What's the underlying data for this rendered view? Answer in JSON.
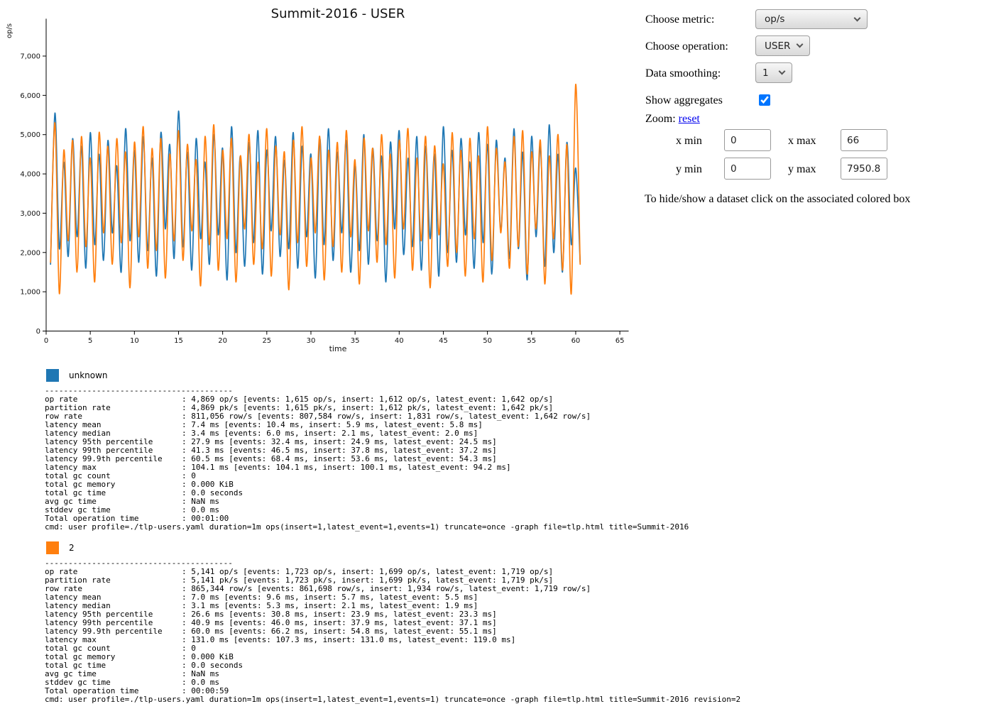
{
  "chart": {
    "title": "Summit-2016 - USER",
    "y_axis_label": "op/s",
    "x_axis_label": "time"
  },
  "chart_data": {
    "type": "line",
    "title": "Summit-2016 - USER",
    "xlabel": "time",
    "ylabel": "op/s",
    "xlim": [
      0,
      66
    ],
    "ylim": [
      0,
      7950.8
    ],
    "grid": false,
    "x_ticks": [
      0,
      5,
      10,
      15,
      20,
      25,
      30,
      35,
      40,
      45,
      50,
      55,
      60,
      65
    ],
    "y_ticks": [
      0,
      1000,
      2000,
      3000,
      4000,
      5000,
      6000,
      7000
    ],
    "y_tick_labels": [
      "0",
      "1,000",
      "2,000",
      "3,000",
      "4,000",
      "5,000",
      "6,000",
      "7,000"
    ],
    "x_start": 0.5,
    "x_step": 0.5,
    "series": [
      {
        "name": "unknown",
        "color": "#1f77b4",
        "values": [
          1700,
          5550,
          2100,
          4300,
          1900,
          4900,
          2400,
          4700,
          1600,
          5050,
          2200,
          4500,
          1800,
          4850,
          2500,
          4200,
          1500,
          5150,
          2300,
          4600,
          1750,
          4950,
          2050,
          4400,
          1400,
          5050,
          2600,
          4750,
          1850,
          5600,
          2150,
          4550,
          1550,
          4900,
          2350,
          4300,
          1700,
          5000,
          2450,
          4650,
          1300,
          5200,
          2000,
          4450,
          1650,
          4800,
          2250,
          5100,
          1450,
          4600,
          2550,
          4950,
          1900,
          4350,
          2100,
          5050,
          1600,
          4700,
          2400,
          4500,
          1350,
          4900,
          2200,
          5150,
          1800,
          4550,
          2500,
          4850,
          1500,
          4250,
          2050,
          5000,
          1700,
          4650,
          2300,
          4450,
          1250,
          4800,
          2600,
          5100,
          1950,
          4400,
          2150,
          4950,
          1550,
          4700,
          2350,
          4500,
          1400,
          5200,
          2000,
          4600,
          1750,
          4900,
          2450,
          4300,
          1600,
          5050,
          2250,
          4750,
          1450,
          4850,
          2550,
          4400,
          1850,
          5150,
          2100,
          4550,
          1300,
          4950,
          2400,
          4700,
          1650,
          5250,
          2000,
          4500,
          1500,
          4800,
          2200,
          4150,
          1750
        ]
      },
      {
        "name": "2",
        "color": "#ff7f0e",
        "values": [
          1750,
          5300,
          950,
          4600,
          2300,
          4850,
          1500,
          4950,
          2150,
          4400,
          1250,
          5050,
          2500,
          4700,
          1700,
          4900,
          2250,
          4550,
          1100,
          4800,
          2400,
          5200,
          1600,
          4650,
          2050,
          4900,
          1350,
          4500,
          2300,
          5100,
          1800,
          4750,
          2550,
          4350,
          1150,
          4950,
          2200,
          5250,
          1550,
          4600,
          2350,
          4900,
          1250,
          4450,
          2600,
          5000,
          1700,
          4300,
          2100,
          5150,
          1400,
          4700,
          2450,
          4550,
          1050,
          4850,
          2250,
          5200,
          1650,
          4400,
          2500,
          4950,
          1300,
          4600,
          2150,
          4800,
          1500,
          5100,
          2400,
          4350,
          1200,
          4900,
          2550,
          4650,
          1750,
          5000,
          2200,
          4500,
          1350,
          4850,
          2600,
          5150,
          1550,
          4400,
          2300,
          4950,
          1100,
          4700,
          2450,
          4250,
          1650,
          5050,
          2000,
          4600,
          1400,
          4900,
          2350,
          4450,
          1250,
          5200,
          1800,
          4650,
          2500,
          4300,
          1600,
          4950,
          2150,
          5100,
          1450,
          4550,
          2600,
          4850,
          1200,
          4450,
          2350,
          5000,
          1550,
          4750,
          950,
          6280,
          1700
        ]
      }
    ]
  },
  "controls": {
    "metric_label": "Choose metric:",
    "metric_value": "op/s",
    "operation_label": "Choose operation:",
    "operation_value": "USER",
    "smoothing_label": "Data smoothing:",
    "smoothing_value": "1",
    "aggregates_label": "Show aggregates",
    "aggregates_checked": true,
    "zoom_label": "Zoom:",
    "reset_label": "reset",
    "x_min_label": "x min",
    "x_min_value": "0",
    "x_max_label": "x max",
    "x_max_value": "66",
    "y_min_label": "y min",
    "y_min_value": "0",
    "y_max_label": "y max",
    "y_max_value": "7950.8",
    "hint": "To hide/show a dataset click on the associated colored box"
  },
  "legends": [
    {
      "name": "unknown",
      "color": "#1f77b4",
      "separator": "----------------------------------------",
      "stats": [
        {
          "label": "op rate",
          "value": ": 4,869 op/s [events: 1,615 op/s, insert: 1,612 op/s, latest_event: 1,642 op/s]"
        },
        {
          "label": "partition rate",
          "value": ": 4,869 pk/s [events: 1,615 pk/s, insert: 1,612 pk/s, latest_event: 1,642 pk/s]"
        },
        {
          "label": "row rate",
          "value": ": 811,056 row/s [events: 807,584 row/s, insert: 1,831 row/s, latest_event: 1,642 row/s]"
        },
        {
          "label": "latency mean",
          "value": ": 7.4 ms [events: 10.4 ms, insert: 5.9 ms, latest_event: 5.8 ms]"
        },
        {
          "label": "latency median",
          "value": ": 3.4 ms [events: 6.0 ms, insert: 2.1 ms, latest_event: 2.0 ms]"
        },
        {
          "label": "latency 95th percentile",
          "value": ": 27.9 ms [events: 32.4 ms, insert: 24.9 ms, latest_event: 24.5 ms]"
        },
        {
          "label": "latency 99th percentile",
          "value": ": 41.3 ms [events: 46.5 ms, insert: 37.8 ms, latest_event: 37.2 ms]"
        },
        {
          "label": "latency 99.9th percentile",
          "value": ": 60.5 ms [events: 68.4 ms, insert: 53.6 ms, latest_event: 54.3 ms]"
        },
        {
          "label": "latency max",
          "value": ": 104.1 ms [events: 104.1 ms, insert: 100.1 ms, latest_event: 94.2 ms]"
        },
        {
          "label": "total gc count",
          "value": ": 0"
        },
        {
          "label": "total gc memory",
          "value": ": 0.000 KiB"
        },
        {
          "label": "total gc time",
          "value": ": 0.0 seconds"
        },
        {
          "label": "avg gc time",
          "value": ": NaN ms"
        },
        {
          "label": "stddev gc time",
          "value": ": 0.0 ms"
        },
        {
          "label": "Total operation time",
          "value": ": 00:01:00"
        }
      ],
      "cmd": "cmd: user profile=./tlp-users.yaml duration=1m ops(insert=1,latest_event=1,events=1) truncate=once -graph file=tlp.html title=Summit-2016"
    },
    {
      "name": "2",
      "color": "#ff7f0e",
      "separator": "----------------------------------------",
      "stats": [
        {
          "label": "op rate",
          "value": ": 5,141 op/s [events: 1,723 op/s, insert: 1,699 op/s, latest_event: 1,719 op/s]"
        },
        {
          "label": "partition rate",
          "value": ": 5,141 pk/s [events: 1,723 pk/s, insert: 1,699 pk/s, latest_event: 1,719 pk/s]"
        },
        {
          "label": "row rate",
          "value": ": 865,344 row/s [events: 861,698 row/s, insert: 1,934 row/s, latest_event: 1,719 row/s]"
        },
        {
          "label": "latency mean",
          "value": ": 7.0 ms [events: 9.6 ms, insert: 5.7 ms, latest_event: 5.5 ms]"
        },
        {
          "label": "latency median",
          "value": ": 3.1 ms [events: 5.3 ms, insert: 2.1 ms, latest_event: 1.9 ms]"
        },
        {
          "label": "latency 95th percentile",
          "value": ": 26.6 ms [events: 30.8 ms, insert: 23.9 ms, latest_event: 23.3 ms]"
        },
        {
          "label": "latency 99th percentile",
          "value": ": 40.9 ms [events: 46.0 ms, insert: 37.9 ms, latest_event: 37.1 ms]"
        },
        {
          "label": "latency 99.9th percentile",
          "value": ": 60.0 ms [events: 66.2 ms, insert: 54.8 ms, latest_event: 55.1 ms]"
        },
        {
          "label": "latency max",
          "value": ": 131.0 ms [events: 107.3 ms, insert: 131.0 ms, latest_event: 119.0 ms]"
        },
        {
          "label": "total gc count",
          "value": ": 0"
        },
        {
          "label": "total gc memory",
          "value": ": 0.000 KiB"
        },
        {
          "label": "total gc time",
          "value": ": 0.0 seconds"
        },
        {
          "label": "avg gc time",
          "value": ": NaN ms"
        },
        {
          "label": "stddev gc time",
          "value": ": 0.0 ms"
        },
        {
          "label": "Total operation time",
          "value": ": 00:00:59"
        }
      ],
      "cmd": "cmd: user profile=./tlp-users.yaml duration=1m ops(insert=1,latest_event=1,events=1) truncate=once -graph file=tlp.html title=Summit-2016 revision=2"
    }
  ]
}
